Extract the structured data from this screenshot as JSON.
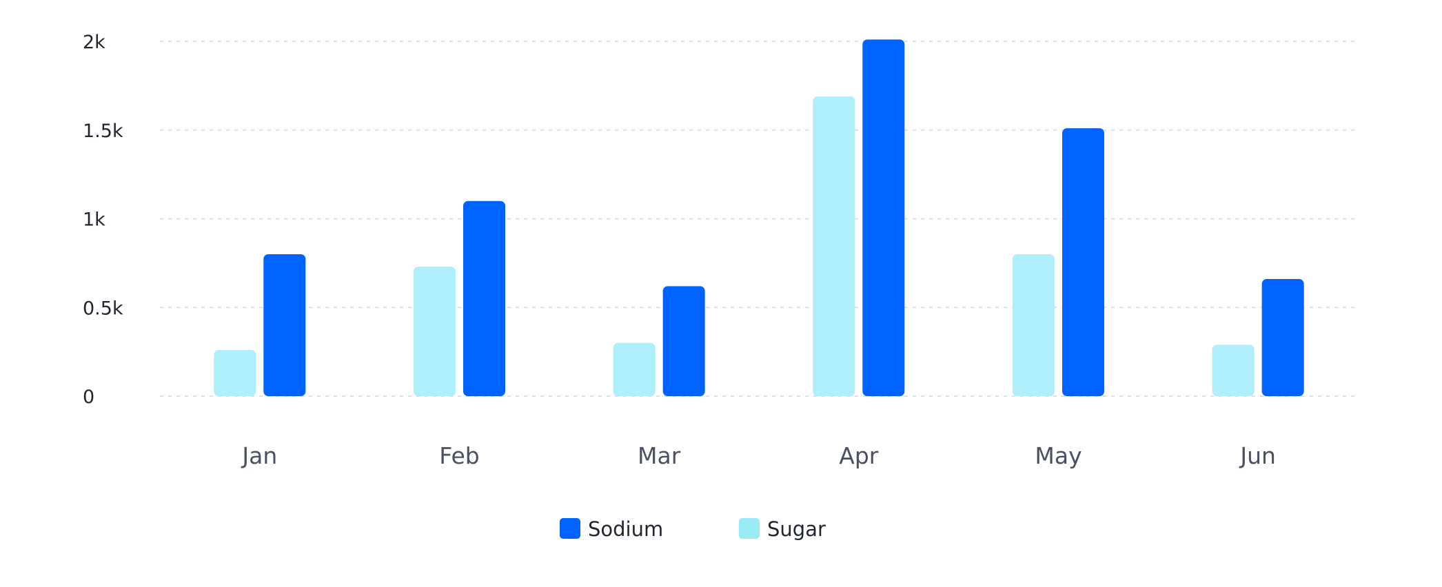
{
  "chart_data": {
    "type": "bar",
    "title": "",
    "xlabel": "",
    "ylabel": "",
    "categories": [
      "Jan",
      "Feb",
      "Mar",
      "Apr",
      "May",
      "Jun"
    ],
    "series": [
      {
        "name": "Sugar",
        "color": "#aeeffb",
        "values": [
          260,
          730,
          300,
          1690,
          800,
          290
        ]
      },
      {
        "name": "Sodium",
        "color": "#0062ff",
        "values": [
          800,
          1100,
          620,
          2010,
          1510,
          660
        ]
      }
    ],
    "yticks": [
      0,
      500,
      1000,
      1500,
      2000
    ],
    "ytick_labels": [
      "0",
      "0.5k",
      "1k",
      "1.5k",
      "2k"
    ],
    "ylim": [
      0,
      2000
    ],
    "grid": true,
    "legend": {
      "position": "bottom",
      "items": [
        {
          "name": "Sodium",
          "color": "#0062ff"
        },
        {
          "name": "Sugar",
          "color": "#99ecf5"
        }
      ]
    }
  }
}
